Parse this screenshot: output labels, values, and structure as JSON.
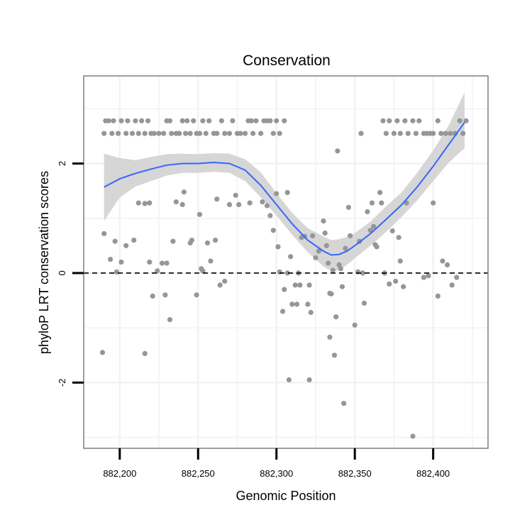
{
  "chart_data": {
    "type": "scatter",
    "title": "Conservation",
    "xlabel": "Genomic Position",
    "ylabel": "phyloP LRT conservation scores",
    "xlim": [
      882177,
      882435
    ],
    "ylim": [
      -3.2,
      3.6
    ],
    "x_ticks": [
      882200,
      882250,
      882300,
      882350,
      882400
    ],
    "x_tick_labels": [
      "882,200",
      "882,250",
      "882,300",
      "882,350",
      "882,400"
    ],
    "y_ticks": [
      -2,
      0,
      2
    ],
    "y_tick_labels": [
      "-2",
      "0",
      "2"
    ],
    "hline": {
      "y": 0,
      "style": "dashed"
    },
    "grid": true,
    "colors": {
      "points": "#969696",
      "smooth": "#3366ff",
      "ribbon": "#d6d6d6",
      "panel_border": "#7f7f7f",
      "grid": "#f2f2f2"
    },
    "series": [
      {
        "name": "scores",
        "points": [
          [
            882190,
            2.55
          ],
          [
            882191,
            2.78
          ],
          [
            882193,
            2.78
          ],
          [
            882195,
            2.55
          ],
          [
            882196,
            2.78
          ],
          [
            882199,
            2.55
          ],
          [
            882201,
            2.78
          ],
          [
            882204,
            2.55
          ],
          [
            882205,
            2.78
          ],
          [
            882208,
            2.55
          ],
          [
            882210,
            2.78
          ],
          [
            882212,
            2.55
          ],
          [
            882214,
            2.78
          ],
          [
            882216,
            2.55
          ],
          [
            882218,
            2.78
          ],
          [
            882220,
            2.55
          ],
          [
            882222,
            2.55
          ],
          [
            882225,
            2.55
          ],
          [
            882228,
            2.55
          ],
          [
            882230,
            2.78
          ],
          [
            882232,
            2.78
          ],
          [
            882233,
            2.55
          ],
          [
            882236,
            2.55
          ],
          [
            882238,
            2.55
          ],
          [
            882240,
            2.78
          ],
          [
            882242,
            2.55
          ],
          [
            882243,
            2.78
          ],
          [
            882245,
            2.55
          ],
          [
            882247,
            2.78
          ],
          [
            882249,
            2.55
          ],
          [
            882251,
            2.55
          ],
          [
            882253,
            2.78
          ],
          [
            882255,
            2.55
          ],
          [
            882257,
            2.78
          ],
          [
            882260,
            2.55
          ],
          [
            882262,
            2.55
          ],
          [
            882265,
            2.78
          ],
          [
            882267,
            2.55
          ],
          [
            882270,
            2.55
          ],
          [
            882272,
            2.78
          ],
          [
            882275,
            2.55
          ],
          [
            882277,
            2.55
          ],
          [
            882280,
            2.55
          ],
          [
            882282,
            2.78
          ],
          [
            882284,
            2.78
          ],
          [
            882285,
            2.55
          ],
          [
            882287,
            2.78
          ],
          [
            882290,
            2.55
          ],
          [
            882292,
            2.78
          ],
          [
            882294,
            2.78
          ],
          [
            882296,
            2.78
          ],
          [
            882298,
            2.55
          ],
          [
            882300,
            2.78
          ],
          [
            882302,
            2.55
          ],
          [
            882305,
            2.78
          ],
          [
            882368,
            2.78
          ],
          [
            882370,
            2.55
          ],
          [
            882372,
            2.78
          ],
          [
            882375,
            2.55
          ],
          [
            882377,
            2.78
          ],
          [
            882379,
            2.55
          ],
          [
            882382,
            2.78
          ],
          [
            882384,
            2.55
          ],
          [
            882387,
            2.78
          ],
          [
            882389,
            2.55
          ],
          [
            882391,
            2.78
          ],
          [
            882394,
            2.55
          ],
          [
            882396,
            2.55
          ],
          [
            882398,
            2.55
          ],
          [
            882400,
            2.55
          ],
          [
            882403,
            2.78
          ],
          [
            882405,
            2.55
          ],
          [
            882408,
            2.55
          ],
          [
            882411,
            2.55
          ],
          [
            882414,
            2.55
          ],
          [
            882417,
            2.78
          ],
          [
            882419,
            2.55
          ],
          [
            882421,
            2.78
          ],
          [
            882339,
            2.23
          ],
          [
            882354,
            2.55
          ],
          [
            882190,
            0.72
          ],
          [
            882189,
            -1.45
          ],
          [
            882194,
            0.25
          ],
          [
            882197,
            0.58
          ],
          [
            882198,
            0.02
          ],
          [
            882201,
            0.2
          ],
          [
            882204,
            0.5
          ],
          [
            882209,
            0.6
          ],
          [
            882212,
            1.28
          ],
          [
            882216,
            1.27
          ],
          [
            882219,
            1.28
          ],
          [
            882219,
            0.2
          ],
          [
            882221,
            -0.42
          ],
          [
            882224,
            0.04
          ],
          [
            882227,
            0.18
          ],
          [
            882229,
            -0.4
          ],
          [
            882230,
            0.18
          ],
          [
            882232,
            -0.85
          ],
          [
            882234,
            0.58
          ],
          [
            882236,
            1.3
          ],
          [
            882216,
            -1.47
          ],
          [
            882240,
            1.25
          ],
          [
            882241,
            1.48
          ],
          [
            882245,
            0.55
          ],
          [
            882246,
            0.6
          ],
          [
            882249,
            -0.4
          ],
          [
            882251,
            1.07
          ],
          [
            882252,
            0.08
          ],
          [
            882253,
            0.04
          ],
          [
            882256,
            0.55
          ],
          [
            882258,
            0.22
          ],
          [
            882261,
            0.6
          ],
          [
            882262,
            1.35
          ],
          [
            882264,
            -0.22
          ],
          [
            882267,
            -0.15
          ],
          [
            882270,
            1.25
          ],
          [
            882274,
            1.42
          ],
          [
            882276,
            1.25
          ],
          [
            882283,
            1.28
          ],
          [
            882291,
            1.3
          ],
          [
            882296,
            1.05
          ],
          [
            882294,
            1.23
          ],
          [
            882298,
            0.78
          ],
          [
            882300,
            1.45
          ],
          [
            882301,
            0.48
          ],
          [
            882302,
            0.02
          ],
          [
            882304,
            -0.7
          ],
          [
            882305,
            -0.3
          ],
          [
            882307,
            0.0
          ],
          [
            882307,
            1.47
          ],
          [
            882308,
            -1.95
          ],
          [
            882309,
            0.3
          ],
          [
            882310,
            -0.57
          ],
          [
            882312,
            -0.22
          ],
          [
            882313,
            -0.57
          ],
          [
            882314,
            0.0
          ],
          [
            882315,
            -0.22
          ],
          [
            882316,
            0.65
          ],
          [
            882318,
            0.67
          ],
          [
            882320,
            -0.57
          ],
          [
            882321,
            -0.22
          ],
          [
            882321,
            -1.95
          ],
          [
            882322,
            -0.72
          ],
          [
            882323,
            0.68
          ],
          [
            882325,
            0.28
          ],
          [
            882327,
            0.4
          ],
          [
            882330,
            0.95
          ],
          [
            882331,
            0.73
          ],
          [
            882332,
            0.5
          ],
          [
            882333,
            0.18
          ],
          [
            882334,
            -0.37
          ],
          [
            882334,
            -1.17
          ],
          [
            882335,
            -0.38
          ],
          [
            882336,
            0.05
          ],
          [
            882337,
            -1.5
          ],
          [
            882338,
            -0.8
          ],
          [
            882340,
            0.15
          ],
          [
            882341,
            0.08
          ],
          [
            882342,
            -0.25
          ],
          [
            882343,
            -2.38
          ],
          [
            882344,
            0.45
          ],
          [
            882346,
            1.2
          ],
          [
            882347,
            0.68
          ],
          [
            882350,
            -0.95
          ],
          [
            882352,
            0.02
          ],
          [
            882353,
            0.58
          ],
          [
            882355,
            0.0
          ],
          [
            882356,
            -0.55
          ],
          [
            882358,
            1.12
          ],
          [
            882360,
            0.78
          ],
          [
            882361,
            1.28
          ],
          [
            882362,
            0.85
          ],
          [
            882363,
            0.52
          ],
          [
            882364,
            0.48
          ],
          [
            882366,
            1.47
          ],
          [
            882367,
            1.28
          ],
          [
            882369,
            0.0
          ],
          [
            882372,
            -0.2
          ],
          [
            882374,
            0.77
          ],
          [
            882376,
            -0.15
          ],
          [
            882378,
            0.65
          ],
          [
            882379,
            0.22
          ],
          [
            882381,
            -0.25
          ],
          [
            882383,
            1.28
          ],
          [
            882387,
            -2.98
          ],
          [
            882394,
            -0.08
          ],
          [
            882397,
            -0.05
          ],
          [
            882400,
            1.28
          ],
          [
            882403,
            -0.42
          ],
          [
            882406,
            0.22
          ],
          [
            882409,
            0.15
          ],
          [
            882412,
            -0.22
          ],
          [
            882415,
            -0.08
          ]
        ]
      }
    ],
    "smooth": {
      "x": [
        882190,
        882200,
        882210,
        882220,
        882230,
        882240,
        882250,
        882260,
        882270,
        882280,
        882290,
        882300,
        882310,
        882320,
        882330,
        882335,
        882340,
        882345,
        882350,
        882360,
        882370,
        882380,
        882390,
        882400,
        882410,
        882420
      ],
      "y": [
        1.57,
        1.72,
        1.82,
        1.9,
        1.97,
        2.0,
        2.0,
        2.02,
        2.0,
        1.88,
        1.6,
        1.25,
        0.9,
        0.6,
        0.4,
        0.33,
        0.34,
        0.4,
        0.5,
        0.72,
        0.98,
        1.25,
        1.58,
        1.95,
        2.35,
        2.75
      ],
      "lower": [
        0.95,
        1.38,
        1.58,
        1.68,
        1.78,
        1.83,
        1.83,
        1.85,
        1.83,
        1.68,
        1.38,
        1.05,
        0.7,
        0.38,
        0.12,
        0.04,
        0.05,
        0.15,
        0.27,
        0.5,
        0.75,
        1.03,
        1.33,
        1.68,
        2.02,
        2.28
      ],
      "upper": [
        2.18,
        2.1,
        2.06,
        2.12,
        2.17,
        2.18,
        2.17,
        2.19,
        2.18,
        2.08,
        1.84,
        1.46,
        1.1,
        0.82,
        0.67,
        0.6,
        0.62,
        0.66,
        0.73,
        0.94,
        1.22,
        1.48,
        1.84,
        2.24,
        2.7,
        3.3
      ]
    }
  }
}
